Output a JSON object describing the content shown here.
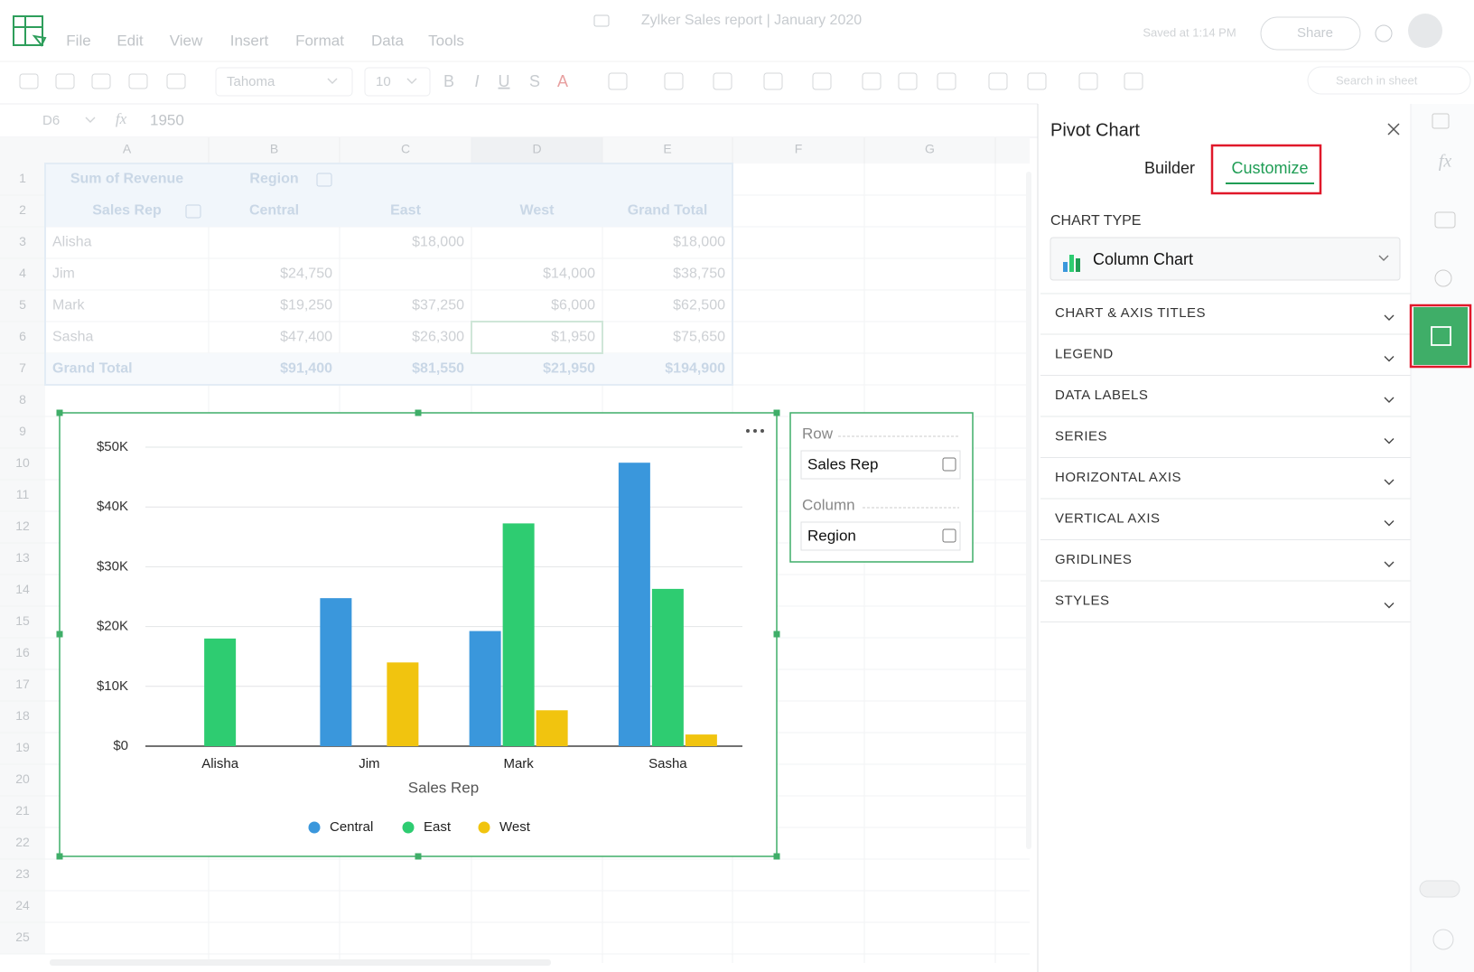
{
  "header": {
    "doc_title": "Zylker Sales report | January 2020",
    "saved": "Saved at 1:14 PM",
    "share": "Share",
    "menu": [
      "File",
      "Edit",
      "View",
      "Insert",
      "Format",
      "Data",
      "Tools"
    ]
  },
  "toolbar": {
    "font": "Tahoma",
    "font_size": "10",
    "format": [
      "B",
      "I",
      "U",
      "S",
      "A"
    ],
    "search": "Search in sheet"
  },
  "formula_bar": {
    "cell": "D6",
    "fx": "fx",
    "value": "1950"
  },
  "sheet": {
    "columns": [
      "A",
      "B",
      "C",
      "D",
      "E",
      "F",
      "G"
    ],
    "rows": [
      "1",
      "2",
      "3",
      "4",
      "5",
      "6",
      "7",
      "8",
      "9",
      "10",
      "11",
      "12",
      "13",
      "14",
      "15",
      "16",
      "17",
      "18",
      "19",
      "20",
      "21",
      "22",
      "23",
      "24",
      "25"
    ],
    "cells": [
      [
        "Sum of Revenue",
        "Region",
        null,
        null,
        null
      ],
      [
        "Sales Rep",
        "Central",
        "East",
        "West",
        "Grand Total"
      ],
      [
        "Alisha",
        null,
        "$18,000",
        null,
        "$18,000"
      ],
      [
        "Jim",
        "$24,750",
        null,
        "$14,000",
        "$38,750"
      ],
      [
        "Mark",
        "$19,250",
        "$37,250",
        "$6,000",
        "$62,500"
      ],
      [
        "Sasha",
        "$47,400",
        "$26,300",
        "$1,950",
        "$75,650"
      ],
      [
        "Grand Total",
        "$91,400",
        "$81,550",
        "$21,950",
        "$194,900"
      ]
    ]
  },
  "chart_data": {
    "type": "bar",
    "x_label": "Sales Rep",
    "categories": [
      "Alisha",
      "Jim",
      "Mark",
      "Sasha"
    ],
    "series": [
      {
        "name": "Central",
        "color": "#3a97dc",
        "values": [
          null,
          24750,
          19250,
          47400
        ]
      },
      {
        "name": "East",
        "color": "#2ecc71",
        "values": [
          18000,
          null,
          37250,
          26300
        ]
      },
      {
        "name": "West",
        "color": "#f1c40f",
        "values": [
          null,
          14000,
          6000,
          1950
        ]
      }
    ],
    "ylim": [
      0,
      50000
    ],
    "yticks": [
      {
        "value": 0,
        "label": "$0"
      },
      {
        "value": 10000,
        "label": "$10K"
      },
      {
        "value": 20000,
        "label": "$20K"
      },
      {
        "value": 30000,
        "label": "$30K"
      },
      {
        "value": 40000,
        "label": "$40K"
      },
      {
        "value": 50000,
        "label": "$50K"
      }
    ],
    "grid": true,
    "legend": "bottom"
  },
  "pivot_fields": {
    "row_label": "Row",
    "row_value": "Sales Rep",
    "column_label": "Column",
    "column_value": "Region"
  },
  "panel": {
    "title": "Pivot Chart",
    "tabs": [
      "Builder",
      "Customize"
    ],
    "chart_type_label": "CHART TYPE",
    "chart_type": "Column Chart",
    "sections": [
      "CHART & AXIS TITLES",
      "LEGEND",
      "DATA LABELS",
      "SERIES",
      "HORIZONTAL AXIS",
      "VERTICAL AXIS",
      "GRIDLINES",
      "STYLES"
    ]
  },
  "side": {
    "fx": "fx"
  }
}
